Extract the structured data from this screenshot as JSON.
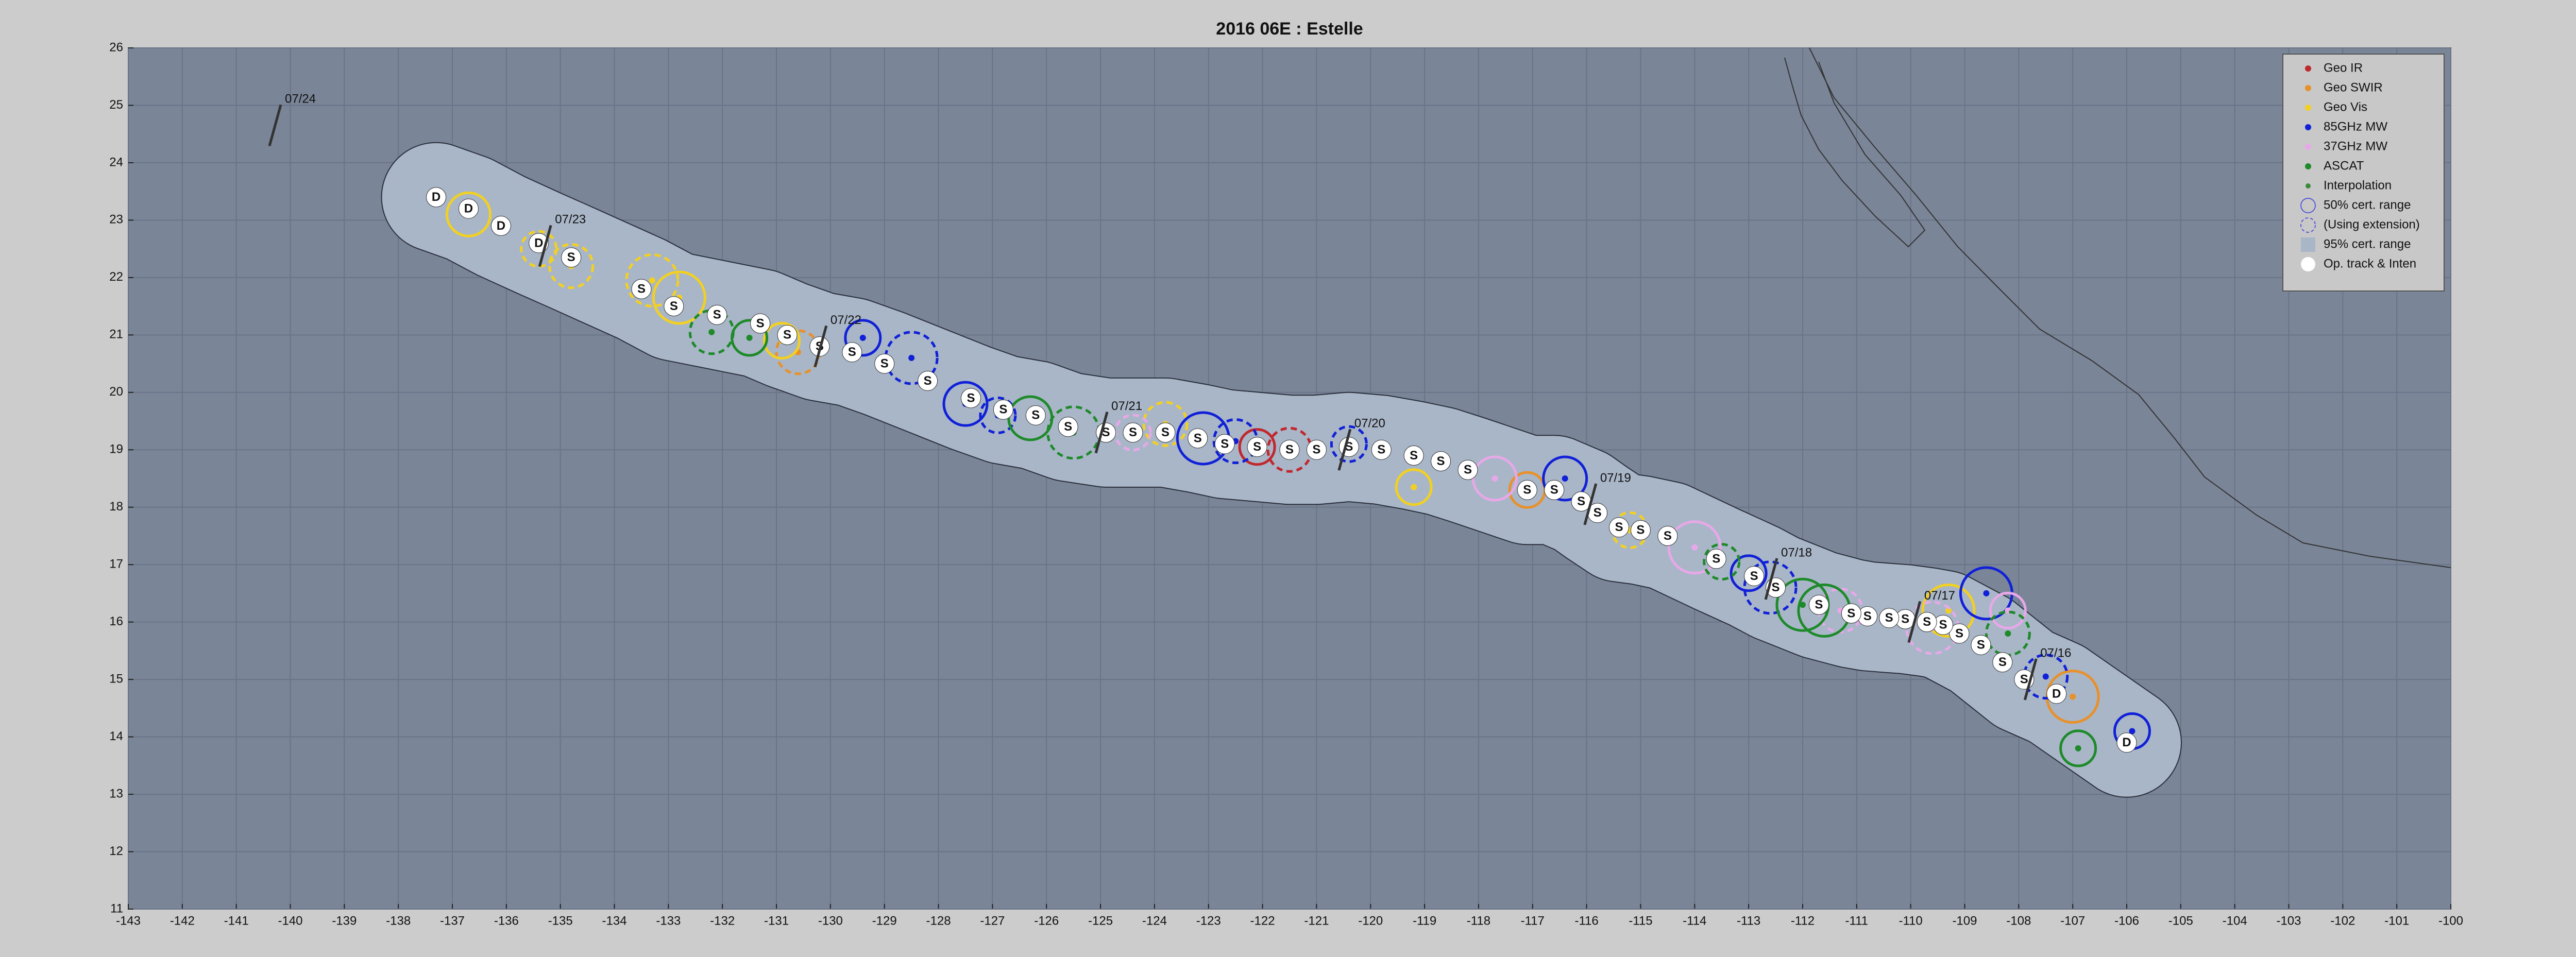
{
  "chart_data": {
    "type": "scatter",
    "title": "2016  06E :  Estelle",
    "xlim": [
      -143,
      -100
    ],
    "ylim": [
      11,
      26
    ],
    "xticks": [
      -143,
      -142,
      -141,
      -140,
      -139,
      -138,
      -137,
      -136,
      -135,
      -134,
      -133,
      -132,
      -131,
      -130,
      -129,
      -128,
      -127,
      -126,
      -125,
      -124,
      -123,
      -122,
      -121,
      -120,
      -119,
      -118,
      -117,
      -116,
      -115,
      -114,
      -113,
      -112,
      -111,
      -110,
      -109,
      -108,
      -107,
      -106,
      -105,
      -104,
      -103,
      -102,
      -101,
      -100
    ],
    "yticks": [
      11,
      12,
      13,
      14,
      15,
      16,
      17,
      18,
      19,
      20,
      21,
      22,
      23,
      24,
      25,
      26
    ],
    "grid": true,
    "series": [
      {
        "name": "Geo IR",
        "color": "#c0282d",
        "x": [
          -122.1,
          -121.5
        ],
        "values": [
          19.05,
          19.0
        ]
      },
      {
        "name": "Geo SWIR",
        "color": "#e8912a",
        "x": [
          -117.1,
          -130.6,
          -107.0
        ],
        "values": [
          18.3,
          20.7,
          14.7
        ]
      },
      {
        "name": "Geo Vis",
        "color": "#f2d022",
        "x": [
          -119.2,
          -123.8,
          -109.3,
          -135.4,
          -136.7,
          -133.3,
          -130.9,
          -134.8,
          -132.8,
          -115.2
        ],
        "values": [
          18.35,
          19.45,
          16.2,
          22.5,
          23.1,
          21.95,
          20.9,
          22.2,
          21.65,
          17.6
        ]
      },
      {
        "name": "85GHz MW",
        "color": "#1020d8",
        "x": [
          -105.9,
          -107.5,
          -108.6,
          -126.9,
          -127.5,
          -128.5,
          -129.4,
          -122.5,
          -123.1,
          -120.4,
          -116.4,
          -112.6,
          -113.0
        ],
        "values": [
          14.1,
          15.05,
          16.5,
          19.6,
          19.8,
          20.6,
          20.95,
          19.15,
          19.2,
          19.1,
          18.5,
          16.6,
          16.85
        ]
      },
      {
        "name": "37GHz MW",
        "color": "#e8a8e8",
        "x": [
          -108.2,
          -111.3,
          -114.0,
          -124.4,
          -117.7,
          -109.6
        ],
        "values": [
          16.2,
          16.2,
          17.3,
          19.3,
          18.5,
          15.9
        ]
      },
      {
        "name": "ASCAT",
        "color": "#1e8a2a",
        "x": [
          -106.9,
          -108.2,
          -112.0,
          -113.5,
          -126.3,
          -125.5,
          -131.5,
          -132.2,
          -111.6
        ],
        "values": [
          13.8,
          15.8,
          16.3,
          17.05,
          19.55,
          19.3,
          20.95,
          21.05,
          16.2
        ]
      }
    ],
    "legend_extra": [
      "Interpolation",
      "50% cert. range",
      "(Using extension)",
      "95% cert. range"
    ],
    "track": {
      "name": "Op. track & Inten",
      "x": [
        -106.0,
        -107.3,
        -107.9,
        -108.3,
        -108.7,
        -109.1,
        -109.4,
        -109.7,
        -110.1,
        -110.4,
        -110.8,
        -111.1,
        -111.7,
        -112.5,
        -112.9,
        -113.6,
        -114.5,
        -115.0,
        -115.4,
        -115.8,
        -116.1,
        -116.6,
        -117.1,
        -118.2,
        -118.7,
        -119.2,
        -119.8,
        -120.4,
        -121.0,
        -121.5,
        -122.1,
        -122.7,
        -123.2,
        -123.8,
        -124.4,
        -124.9,
        -125.6,
        -126.2,
        -126.8,
        -127.4,
        -128.2,
        -129.0,
        -129.6,
        -130.2,
        -130.8,
        -131.3,
        -132.1,
        -132.9,
        -133.5,
        -134.8,
        -135.4,
        -136.1,
        -136.7,
        -137.3
      ],
      "values": [
        13.9,
        14.75,
        15.0,
        15.3,
        15.6,
        15.8,
        15.95,
        16.0,
        16.05,
        16.07,
        16.1,
        16.15,
        16.3,
        16.6,
        16.8,
        17.1,
        17.5,
        17.6,
        17.65,
        17.9,
        18.1,
        18.3,
        18.3,
        18.65,
        18.8,
        18.9,
        19.0,
        19.05,
        19.0,
        19.0,
        19.05,
        19.1,
        19.2,
        19.3,
        19.3,
        19.3,
        19.4,
        19.6,
        19.7,
        19.9,
        20.2,
        20.5,
        20.7,
        20.8,
        21.0,
        21.2,
        21.35,
        21.5,
        21.8,
        22.35,
        22.6,
        22.9,
        23.2,
        23.4
      ],
      "labels": [
        "D",
        "D",
        "S",
        "S",
        "S",
        "S",
        "S",
        "S",
        "S",
        "S",
        "S",
        "S",
        "S",
        "S",
        "S",
        "S",
        "S",
        "S",
        "S",
        "S",
        "S",
        "S",
        "S",
        "S",
        "S",
        "S",
        "S",
        "S",
        "S",
        "S",
        "S",
        "S",
        "S",
        "S",
        "S",
        "S",
        "S",
        "S",
        "S",
        "S",
        "S",
        "S",
        "S",
        "S",
        "S",
        "S",
        "S",
        "S",
        "S",
        "S",
        "D",
        "D",
        "D",
        "D"
      ]
    },
    "dates": [
      {
        "label": "07/24",
        "x": -140.1,
        "y": 25.1
      },
      {
        "label": "07/23",
        "x": -135.1,
        "y": 23.0
      },
      {
        "label": "07/22",
        "x": -130.0,
        "y": 21.25
      },
      {
        "label": "07/21",
        "x": -124.8,
        "y": 19.75
      },
      {
        "label": "07/20",
        "x": -120.3,
        "y": 19.45
      },
      {
        "label": "07/19",
        "x": -115.75,
        "y": 18.5
      },
      {
        "label": "07/18",
        "x": -112.4,
        "y": 17.2
      },
      {
        "label": "07/17",
        "x": -109.75,
        "y": 16.45
      },
      {
        "label": "07/16",
        "x": -107.6,
        "y": 15.45
      }
    ]
  }
}
